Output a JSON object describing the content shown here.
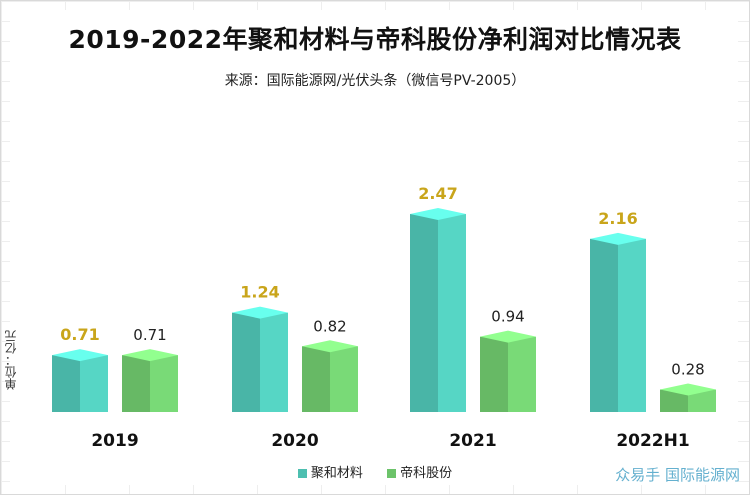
{
  "chart_data": {
    "type": "bar",
    "title": "2019-2022年聚和材料与帝科股份净利润对比情况表",
    "subtitle": "来源：国际能源网/光伏头条（微信号PV-2005）",
    "ylabel": "单位：亿元",
    "categories": [
      "2019",
      "2020",
      "2021",
      "2022H1"
    ],
    "series": [
      {
        "name": "聚和材料",
        "values": [
          0.71,
          1.24,
          2.47,
          2.16
        ],
        "color": "#4dbfb0",
        "label_color": "#c9a51b"
      },
      {
        "name": "帝科股份",
        "values": [
          0.71,
          0.82,
          0.94,
          0.28
        ],
        "color": "#6cc36a",
        "label_color": "#222222"
      }
    ],
    "ylim": [
      0,
      2.47
    ]
  },
  "watermark": "众易手 国际能源网"
}
